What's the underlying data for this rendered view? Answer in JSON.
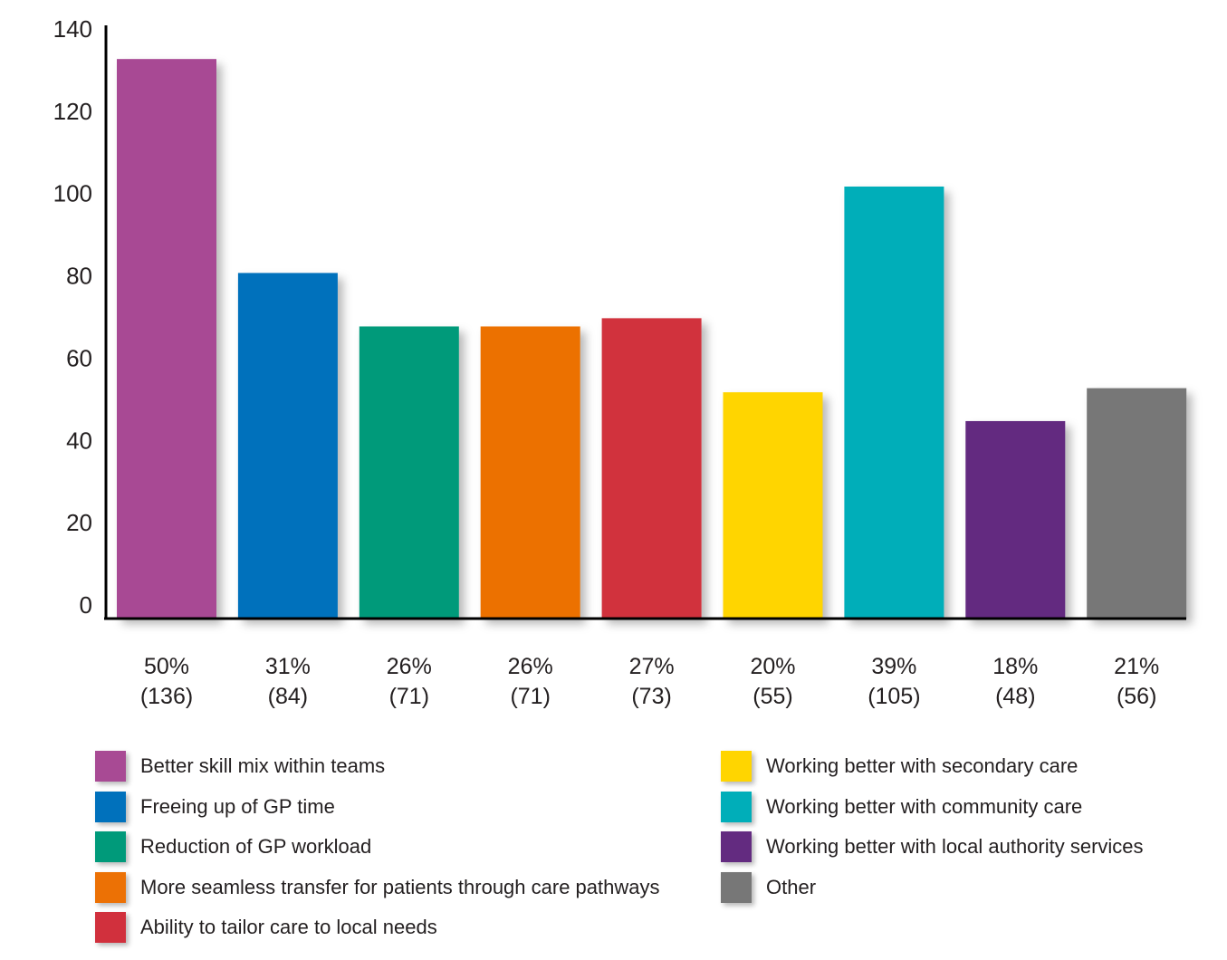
{
  "chart_data": {
    "type": "bar",
    "categories": [
      "Better skill mix within teams",
      "Freeing up of GP time",
      "Reduction of GP workload",
      "More seamless transfer for patients through care pathways",
      "Ability to tailor care to local needs",
      "Working better with secondary care",
      "Working better with community care",
      "Working better with local authority services",
      "Other"
    ],
    "values": [
      136,
      84,
      71,
      71,
      73,
      55,
      105,
      48,
      56
    ],
    "bar_labels": [
      [
        "50%",
        "(136)"
      ],
      [
        "31%",
        "(84)"
      ],
      [
        "26%",
        "(71)"
      ],
      [
        "26%",
        "(71)"
      ],
      [
        "27%",
        "(73)"
      ],
      [
        "20%",
        "(55)"
      ],
      [
        "39%",
        "(105)"
      ],
      [
        "18%",
        "(48)"
      ],
      [
        "21%",
        "(56)"
      ]
    ],
    "colors": [
      "#a84a94",
      "#0071bc",
      "#009a7a",
      "#ec7105",
      "#d1303d",
      "#ffd500",
      "#00aeb9",
      "#632b80",
      "#777777"
    ],
    "yticks": [
      0,
      20,
      40,
      60,
      80,
      100,
      120,
      140
    ],
    "ylim": [
      0,
      140
    ],
    "title": "",
    "xlabel": "",
    "ylabel": "",
    "grid": false,
    "legend_position": "bottom"
  },
  "legend": {
    "left": [
      {
        "label": "Better skill mix within teams",
        "color": "#a84a94"
      },
      {
        "label": "Freeing up of GP time",
        "color": "#0071bc"
      },
      {
        "label": "Reduction of GP workload",
        "color": "#009a7a"
      },
      {
        "label": "More seamless transfer for patients through care pathways",
        "color": "#ec7105"
      },
      {
        "label": "Ability to tailor care to local needs",
        "color": "#d1303d"
      }
    ],
    "right": [
      {
        "label": "Working better with secondary care",
        "color": "#ffd500"
      },
      {
        "label": "Working better with community care",
        "color": "#00aeb9"
      },
      {
        "label": "Working better with local authority services",
        "color": "#632b80"
      },
      {
        "label": "Other",
        "color": "#777777"
      }
    ]
  }
}
